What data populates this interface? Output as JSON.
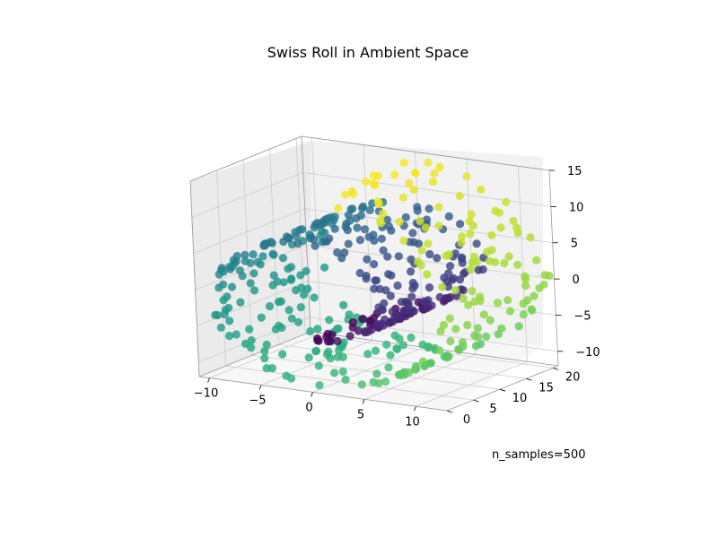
{
  "chart_data": {
    "type": "scatter",
    "projection": "3d",
    "title": "Swiss Roll in Ambient Space",
    "annotation": "n_samples=500",
    "n_samples": 500,
    "colormap": "viridis",
    "grid": true,
    "axes": {
      "x": {
        "ticks": [
          -10,
          -5,
          0,
          5,
          10
        ],
        "tick_labels": [
          "−10",
          "−5",
          "0",
          "5",
          "10"
        ],
        "range": [
          -11,
          13
        ]
      },
      "y": {
        "ticks": [
          0,
          5,
          10,
          15,
          20
        ],
        "tick_labels": [
          "0",
          "5",
          "10",
          "15",
          "20"
        ],
        "range": [
          0,
          21
        ]
      },
      "z": {
        "ticks": [
          -10,
          -5,
          0,
          5,
          10,
          15
        ],
        "tick_labels": [
          "−10",
          "−5",
          "0",
          "5",
          "10",
          "15"
        ],
        "range": [
          -12,
          15
        ]
      }
    },
    "roll": {
      "t_range": [
        4.712,
        14.137
      ],
      "height_range": [
        0,
        21
      ]
    },
    "colors": {
      "pane_left": "#ebebeb",
      "pane_back": "#f2f2f2",
      "pane_floor": "#f7f7f7",
      "grid": "#cccccc",
      "edge": "#999999"
    }
  }
}
